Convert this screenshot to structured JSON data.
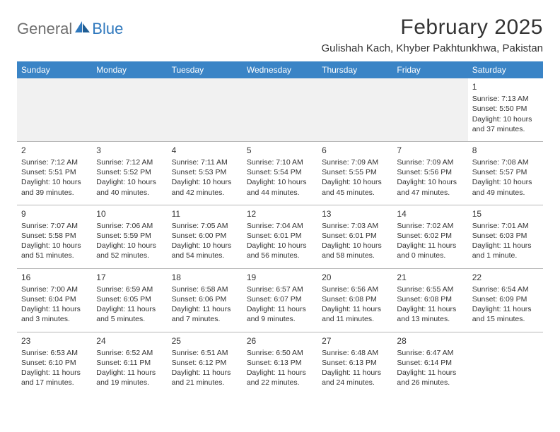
{
  "logo": {
    "text1": "General",
    "text2": "Blue",
    "accent_color": "#2f78bd",
    "gray_color": "#6f6f6f"
  },
  "title": "February 2025",
  "location": "Gulishah Kach, Khyber Pakhtunkhwa, Pakistan",
  "colors": {
    "header_bg": "#3a84c6",
    "header_fg": "#ffffff",
    "grid_line": "#b7b7b7",
    "blank_bg": "#f1f1f1",
    "text": "#333333"
  },
  "weekdays": [
    "Sunday",
    "Monday",
    "Tuesday",
    "Wednesday",
    "Thursday",
    "Friday",
    "Saturday"
  ],
  "weeks": [
    [
      null,
      null,
      null,
      null,
      null,
      null,
      {
        "n": "1",
        "sunrise": "Sunrise: 7:13 AM",
        "sunset": "Sunset: 5:50 PM",
        "daylight": "Daylight: 10 hours and 37 minutes."
      }
    ],
    [
      {
        "n": "2",
        "sunrise": "Sunrise: 7:12 AM",
        "sunset": "Sunset: 5:51 PM",
        "daylight": "Daylight: 10 hours and 39 minutes."
      },
      {
        "n": "3",
        "sunrise": "Sunrise: 7:12 AM",
        "sunset": "Sunset: 5:52 PM",
        "daylight": "Daylight: 10 hours and 40 minutes."
      },
      {
        "n": "4",
        "sunrise": "Sunrise: 7:11 AM",
        "sunset": "Sunset: 5:53 PM",
        "daylight": "Daylight: 10 hours and 42 minutes."
      },
      {
        "n": "5",
        "sunrise": "Sunrise: 7:10 AM",
        "sunset": "Sunset: 5:54 PM",
        "daylight": "Daylight: 10 hours and 44 minutes."
      },
      {
        "n": "6",
        "sunrise": "Sunrise: 7:09 AM",
        "sunset": "Sunset: 5:55 PM",
        "daylight": "Daylight: 10 hours and 45 minutes."
      },
      {
        "n": "7",
        "sunrise": "Sunrise: 7:09 AM",
        "sunset": "Sunset: 5:56 PM",
        "daylight": "Daylight: 10 hours and 47 minutes."
      },
      {
        "n": "8",
        "sunrise": "Sunrise: 7:08 AM",
        "sunset": "Sunset: 5:57 PM",
        "daylight": "Daylight: 10 hours and 49 minutes."
      }
    ],
    [
      {
        "n": "9",
        "sunrise": "Sunrise: 7:07 AM",
        "sunset": "Sunset: 5:58 PM",
        "daylight": "Daylight: 10 hours and 51 minutes."
      },
      {
        "n": "10",
        "sunrise": "Sunrise: 7:06 AM",
        "sunset": "Sunset: 5:59 PM",
        "daylight": "Daylight: 10 hours and 52 minutes."
      },
      {
        "n": "11",
        "sunrise": "Sunrise: 7:05 AM",
        "sunset": "Sunset: 6:00 PM",
        "daylight": "Daylight: 10 hours and 54 minutes."
      },
      {
        "n": "12",
        "sunrise": "Sunrise: 7:04 AM",
        "sunset": "Sunset: 6:01 PM",
        "daylight": "Daylight: 10 hours and 56 minutes."
      },
      {
        "n": "13",
        "sunrise": "Sunrise: 7:03 AM",
        "sunset": "Sunset: 6:01 PM",
        "daylight": "Daylight: 10 hours and 58 minutes."
      },
      {
        "n": "14",
        "sunrise": "Sunrise: 7:02 AM",
        "sunset": "Sunset: 6:02 PM",
        "daylight": "Daylight: 11 hours and 0 minutes."
      },
      {
        "n": "15",
        "sunrise": "Sunrise: 7:01 AM",
        "sunset": "Sunset: 6:03 PM",
        "daylight": "Daylight: 11 hours and 1 minute."
      }
    ],
    [
      {
        "n": "16",
        "sunrise": "Sunrise: 7:00 AM",
        "sunset": "Sunset: 6:04 PM",
        "daylight": "Daylight: 11 hours and 3 minutes."
      },
      {
        "n": "17",
        "sunrise": "Sunrise: 6:59 AM",
        "sunset": "Sunset: 6:05 PM",
        "daylight": "Daylight: 11 hours and 5 minutes."
      },
      {
        "n": "18",
        "sunrise": "Sunrise: 6:58 AM",
        "sunset": "Sunset: 6:06 PM",
        "daylight": "Daylight: 11 hours and 7 minutes."
      },
      {
        "n": "19",
        "sunrise": "Sunrise: 6:57 AM",
        "sunset": "Sunset: 6:07 PM",
        "daylight": "Daylight: 11 hours and 9 minutes."
      },
      {
        "n": "20",
        "sunrise": "Sunrise: 6:56 AM",
        "sunset": "Sunset: 6:08 PM",
        "daylight": "Daylight: 11 hours and 11 minutes."
      },
      {
        "n": "21",
        "sunrise": "Sunrise: 6:55 AM",
        "sunset": "Sunset: 6:08 PM",
        "daylight": "Daylight: 11 hours and 13 minutes."
      },
      {
        "n": "22",
        "sunrise": "Sunrise: 6:54 AM",
        "sunset": "Sunset: 6:09 PM",
        "daylight": "Daylight: 11 hours and 15 minutes."
      }
    ],
    [
      {
        "n": "23",
        "sunrise": "Sunrise: 6:53 AM",
        "sunset": "Sunset: 6:10 PM",
        "daylight": "Daylight: 11 hours and 17 minutes."
      },
      {
        "n": "24",
        "sunrise": "Sunrise: 6:52 AM",
        "sunset": "Sunset: 6:11 PM",
        "daylight": "Daylight: 11 hours and 19 minutes."
      },
      {
        "n": "25",
        "sunrise": "Sunrise: 6:51 AM",
        "sunset": "Sunset: 6:12 PM",
        "daylight": "Daylight: 11 hours and 21 minutes."
      },
      {
        "n": "26",
        "sunrise": "Sunrise: 6:50 AM",
        "sunset": "Sunset: 6:13 PM",
        "daylight": "Daylight: 11 hours and 22 minutes."
      },
      {
        "n": "27",
        "sunrise": "Sunrise: 6:48 AM",
        "sunset": "Sunset: 6:13 PM",
        "daylight": "Daylight: 11 hours and 24 minutes."
      },
      {
        "n": "28",
        "sunrise": "Sunrise: 6:47 AM",
        "sunset": "Sunset: 6:14 PM",
        "daylight": "Daylight: 11 hours and 26 minutes."
      },
      null
    ]
  ]
}
